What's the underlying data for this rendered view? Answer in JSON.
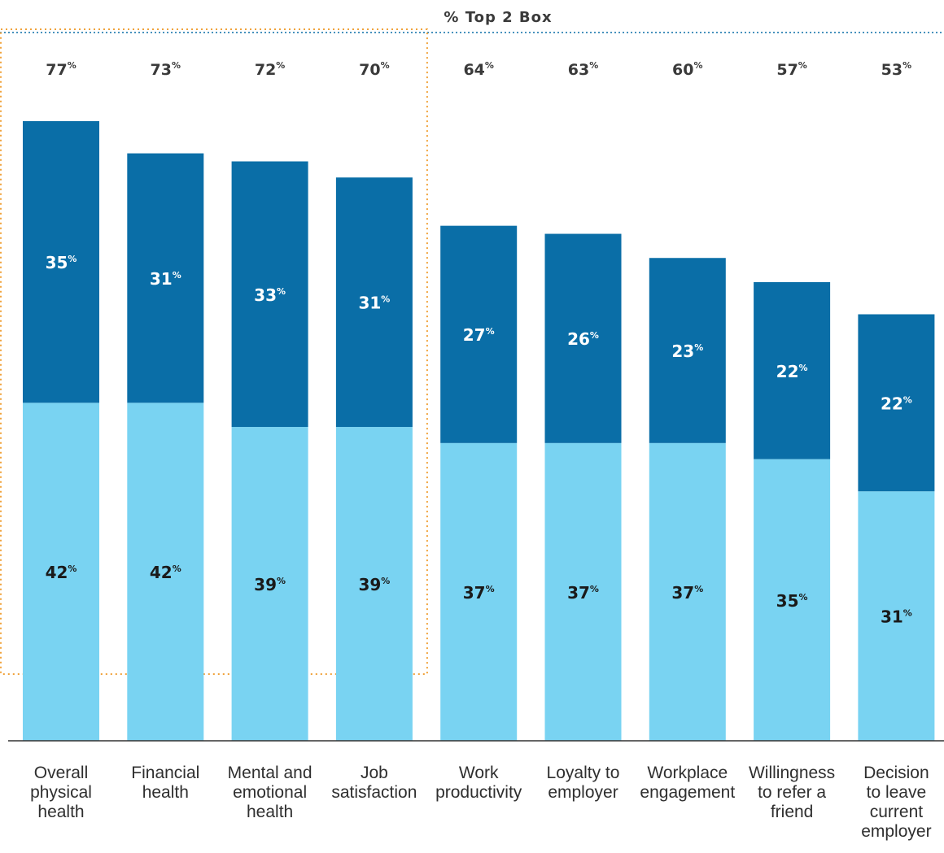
{
  "chart_data": {
    "type": "bar",
    "stacked": true,
    "title": "% Top 2 Box",
    "categories": [
      [
        "Overall",
        "physical",
        "health"
      ],
      [
        "Financial",
        "health"
      ],
      [
        "Mental and",
        "emotional",
        "health"
      ],
      [
        "Job",
        "satisfaction"
      ],
      [
        "Work",
        "productivity"
      ],
      [
        "Loyalty to",
        "employer"
      ],
      [
        "Workplace",
        "engagement"
      ],
      [
        "Willingness",
        "to refer a",
        "friend"
      ],
      [
        "Decision",
        "to leave",
        "current",
        "employer"
      ]
    ],
    "totals": [
      77,
      73,
      72,
      70,
      64,
      63,
      60,
      57,
      53
    ],
    "series": [
      {
        "values": [
          42,
          42,
          39,
          39,
          37,
          37,
          37,
          35,
          31
        ],
        "color": "#79d3f2",
        "label_color": "#1a1a1a"
      },
      {
        "values": [
          35,
          31,
          33,
          31,
          27,
          26,
          23,
          22,
          22
        ],
        "color": "#0a6ea7",
        "label_color": "#ffffff"
      }
    ],
    "unit_symbol": "%",
    "highlighted_categories": [
      0,
      1,
      2,
      3
    ],
    "highlight_color": "#f0a23a",
    "ylim": [
      0,
      77
    ]
  }
}
